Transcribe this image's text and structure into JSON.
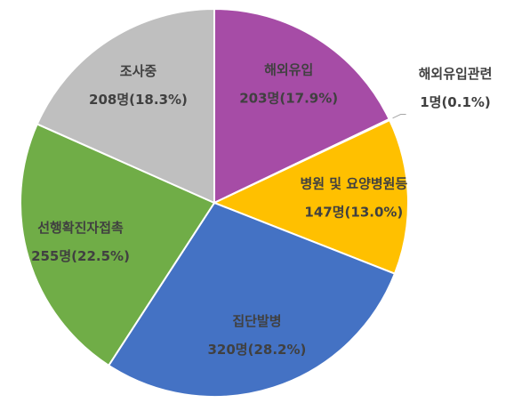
{
  "chart_data": {
    "type": "pie",
    "categories": [
      "해외유입",
      "해외유입관련",
      "병원 및 요양병원등",
      "집단발병",
      "선행확진자접촉",
      "조사중"
    ],
    "values": [
      203,
      1,
      147,
      320,
      255,
      208
    ],
    "value_labels": [
      "203명(17.9%)",
      "1명(0.1%)",
      "147명(13.0%)",
      "320명(28.2%)",
      "255명(22.5%)",
      "208명(18.3%)"
    ],
    "colors": [
      "#A64CA6",
      "#5B9BD5",
      "#FFC000",
      "#4472C4",
      "#70AD47",
      "#BFBFBF"
    ]
  }
}
